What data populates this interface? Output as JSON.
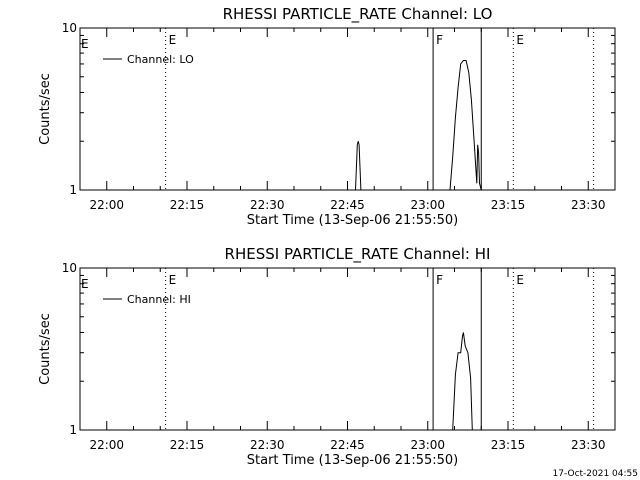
{
  "footer": {
    "timestamp": "17-Oct-2021 04:55"
  },
  "colors": {
    "background": "#ffffff",
    "ink": "#000000"
  },
  "chart_data": [
    {
      "type": "line",
      "title": "RHESSI PARTICLE_RATE Channel: LO",
      "xlabel": "Start Time (13-Sep-06 21:55:50)",
      "ylabel": "Counts/sec",
      "y_scale": "log",
      "ylim": [
        1,
        10
      ],
      "y_ticks": [
        {
          "value": 1,
          "label": "1"
        },
        {
          "value": 10,
          "label": "10"
        }
      ],
      "xlim": [
        "21:55",
        "23:35"
      ],
      "x_ticks": [
        "22:00",
        "22:15",
        "22:30",
        "22:45",
        "23:00",
        "23:15",
        "23:30"
      ],
      "legend": {
        "placement": "top-left",
        "entries": [
          "Channel: LO"
        ]
      },
      "grid": false,
      "markers": [
        {
          "time": "22:11",
          "style": "dotted",
          "label": "E"
        },
        {
          "time": "23:01",
          "style": "solid",
          "label": "F"
        },
        {
          "time": "23:10",
          "style": "solid",
          "label": ""
        },
        {
          "time": "23:16",
          "style": "dotted",
          "label": "E"
        },
        {
          "time": "23:31",
          "style": "dotted",
          "label": ""
        }
      ],
      "series": [
        {
          "name": "Channel: LO",
          "x": [
            "22:46:30",
            "22:46:50",
            "22:47:00",
            "22:47:10",
            "22:47:30",
            "23:04:10",
            "23:04:40",
            "23:05:10",
            "23:05:40",
            "23:06:10",
            "23:06:40",
            "23:07:10",
            "23:07:40",
            "23:08:10",
            "23:08:40",
            "23:09:10",
            "23:09:20",
            "23:09:30",
            "23:09:40",
            "23:10:00"
          ],
          "y": [
            1.0,
            1.9,
            2.0,
            1.9,
            1.0,
            1.0,
            1.6,
            2.8,
            4.3,
            6.0,
            6.3,
            6.3,
            5.3,
            3.6,
            2.0,
            1.1,
            1.9,
            1.7,
            1.1,
            1.0
          ]
        }
      ]
    },
    {
      "type": "line",
      "title": "RHESSI PARTICLE_RATE Channel: HI",
      "xlabel": "Start Time (13-Sep-06 21:55:50)",
      "ylabel": "Counts/sec",
      "y_scale": "log",
      "ylim": [
        1,
        10
      ],
      "y_ticks": [
        {
          "value": 1,
          "label": "1"
        },
        {
          "value": 10,
          "label": "10"
        }
      ],
      "xlim": [
        "21:55",
        "23:35"
      ],
      "x_ticks": [
        "22:00",
        "22:15",
        "22:30",
        "22:45",
        "23:00",
        "23:15",
        "23:30"
      ],
      "legend": {
        "placement": "top-left",
        "entries": [
          "Channel: HI"
        ]
      },
      "grid": false,
      "markers": [
        {
          "time": "22:11",
          "style": "dotted",
          "label": "E"
        },
        {
          "time": "23:01",
          "style": "solid",
          "label": "F"
        },
        {
          "time": "23:10",
          "style": "solid",
          "label": ""
        },
        {
          "time": "23:16",
          "style": "dotted",
          "label": "E"
        },
        {
          "time": "23:31",
          "style": "dotted",
          "label": ""
        }
      ],
      "series": [
        {
          "name": "Channel: HI",
          "x": [
            "23:04:40",
            "23:05:10",
            "23:05:40",
            "23:06:10",
            "23:06:30",
            "23:06:40",
            "23:07:00",
            "23:07:30",
            "23:08:00",
            "23:08:20"
          ],
          "y": [
            1.0,
            2.2,
            3.0,
            3.0,
            3.8,
            4.0,
            3.3,
            3.0,
            2.1,
            1.0
          ]
        }
      ]
    }
  ]
}
